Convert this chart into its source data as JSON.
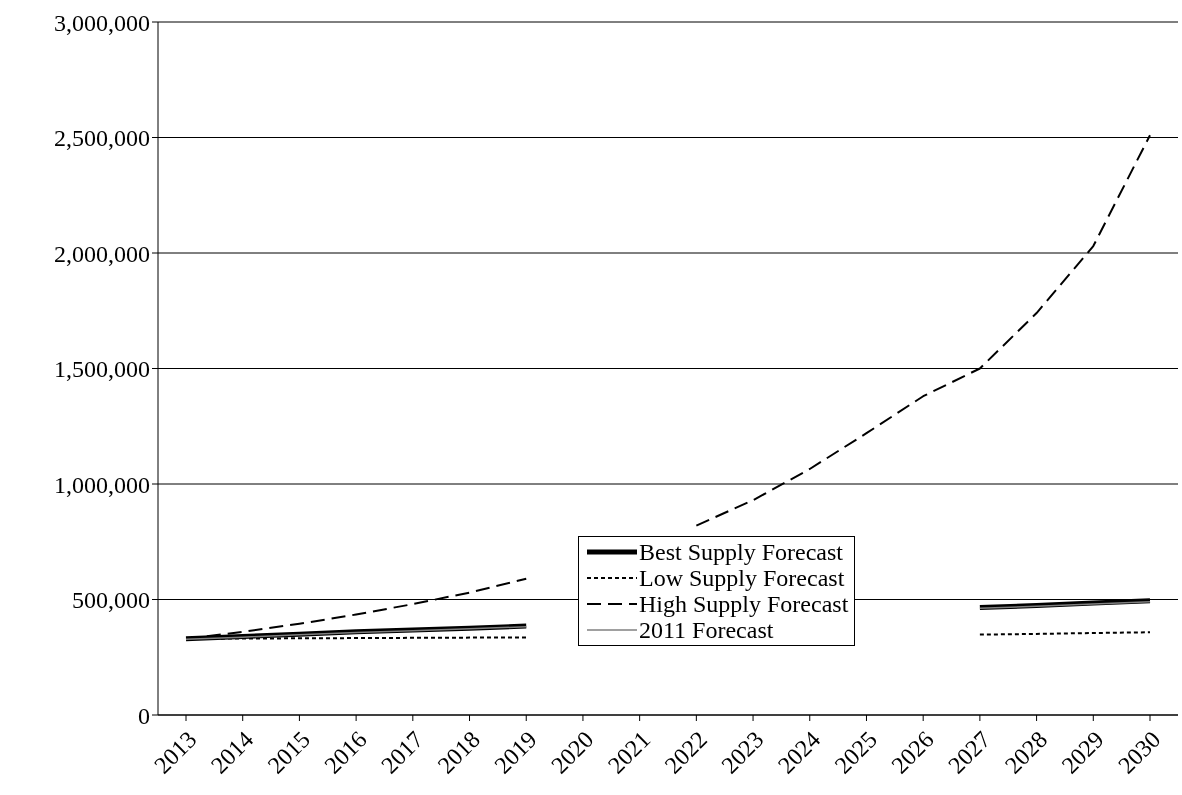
{
  "chart_data": {
    "type": "line",
    "categories": [
      "2013",
      "2014",
      "2015",
      "2016",
      "2017",
      "2018",
      "2019",
      "2020",
      "2021",
      "2022",
      "2023",
      "2024",
      "2025",
      "2026",
      "2027",
      "2028",
      "2029",
      "2030"
    ],
    "series": [
      {
        "name": "Best Supply Forecast",
        "color": "#000000",
        "line_style": "solid",
        "values": [
          330000,
          340000,
          350000,
          360000,
          368000,
          376000,
          385000,
          null,
          null,
          null,
          null,
          null,
          null,
          null,
          465000,
          474000,
          485000,
          495000
        ]
      },
      {
        "name": "Low Supply Forecast",
        "color": "#000000",
        "line_style": "dotted",
        "values": [
          330000,
          331000,
          332000,
          333000,
          334000,
          335000,
          336000,
          null,
          null,
          null,
          null,
          null,
          null,
          null,
          348000,
          351000,
          355000,
          358000
        ]
      },
      {
        "name": "High Supply Forecast",
        "color": "#000000",
        "line_style": "dashed",
        "values": [
          330000,
          360000,
          395000,
          435000,
          480000,
          530000,
          590000,
          null,
          null,
          820000,
          930000,
          1065000,
          1220000,
          1380000,
          1500000,
          1740000,
          2030000,
          2510000
        ]
      },
      {
        "name": "2011 Forecast",
        "color": "#808080",
        "line_style": "solid",
        "values": [
          328000,
          337000,
          347000,
          357000,
          365000,
          373000,
          382000,
          null,
          null,
          null,
          null,
          null,
          null,
          null,
          462000,
          471000,
          481000,
          490000
        ]
      }
    ],
    "ylim": [
      0,
      3000000
    ],
    "yticks": [
      0,
      {
        "value": 500000,
        "label": "500,000"
      },
      {
        "value": 1000000,
        "label": "1,000,000"
      },
      {
        "value": 1500000,
        "label": "1,500,000"
      },
      {
        "value": 2000000,
        "label": "2,000,000"
      },
      {
        "value": 2500000,
        "label": "2,500,000"
      },
      {
        "value": 3000000,
        "label": "3,000,000"
      }
    ],
    "grid": "y",
    "legend": "bottom",
    "marker": "none"
  }
}
